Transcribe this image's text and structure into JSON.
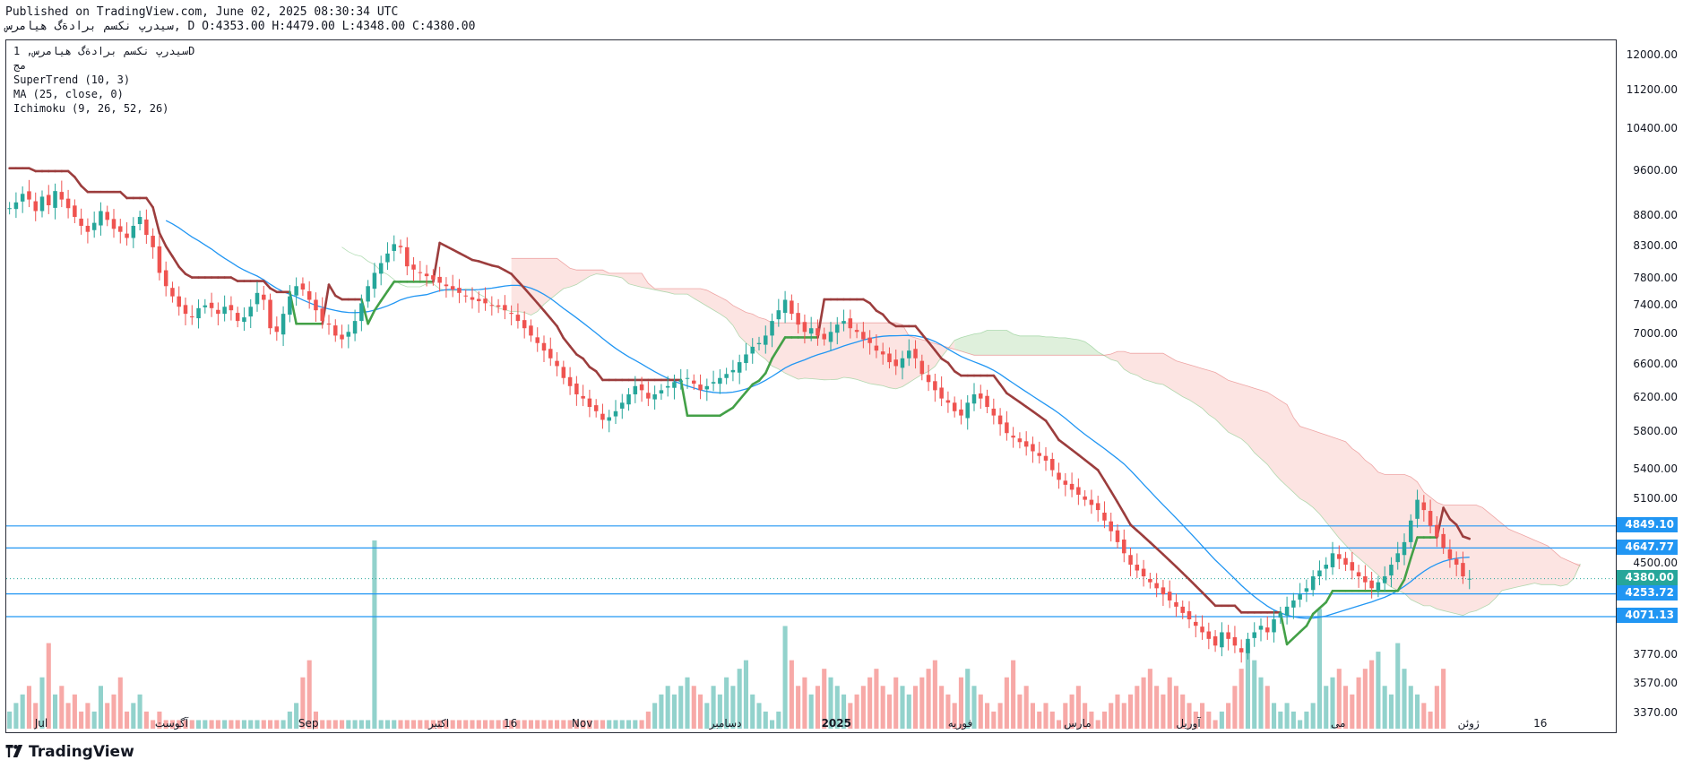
{
  "header": {
    "published": "Published on TradingView.com, June 02, 2025 08:30:34 UTC",
    "ohlc_line": "سیدرپ نکسم برادةگ هیامرس, D O:4353.00 H:4479.00 L:4348.00 C:4380.00"
  },
  "legend": {
    "symbol_line": "سیدرپ نکسم برادةگ هیامرس, 1D",
    "exchange": "مج",
    "supertrend": "SuperTrend (10, 3)",
    "ma": "MA (25, close, 0)",
    "ichimoku": "Ichimoku (9, 26, 52, 26)"
  },
  "footer": {
    "brand": "TradingView"
  },
  "colors": {
    "up": "#26a69a",
    "down": "#ef5350",
    "supertrend_up": "#43a047",
    "supertrend_down": "#9c3d3d",
    "ma": "#2196f3",
    "hline": "#2196f3",
    "cloud_bear": "#fce4e2",
    "cloud_bull": "#dff0dc"
  },
  "chart_data": {
    "type": "candlestick",
    "y_scale": "log",
    "ylim": [
      3280,
      12200
    ],
    "y_ticks": [
      {
        "v": 12000,
        "label": "12000.00"
      },
      {
        "v": 11200,
        "label": "11200.00"
      },
      {
        "v": 10400,
        "label": "10400.00"
      },
      {
        "v": 9600,
        "label": "9600.00"
      },
      {
        "v": 8800,
        "label": "8800.00"
      },
      {
        "v": 8300,
        "label": "8300.00"
      },
      {
        "v": 7800,
        "label": "7800.00"
      },
      {
        "v": 7400,
        "label": "7400.00"
      },
      {
        "v": 7000,
        "label": "7000.00"
      },
      {
        "v": 6600,
        "label": "6600.00"
      },
      {
        "v": 6200,
        "label": "6200.00"
      },
      {
        "v": 5800,
        "label": "5800.00"
      },
      {
        "v": 5400,
        "label": "5400.00"
      },
      {
        "v": 5100,
        "label": "5100.00"
      },
      {
        "v": 4500,
        "label": "4500.00"
      },
      {
        "v": 3770,
        "label": "3770.00"
      },
      {
        "v": 3570,
        "label": "3570.00"
      },
      {
        "v": 3370,
        "label": "3370.00"
      }
    ],
    "x_ticks": [
      {
        "bar": 5,
        "label": "Jul"
      },
      {
        "bar": 25,
        "label": "آگوست"
      },
      {
        "bar": 46,
        "label": "Sep"
      },
      {
        "bar": 66,
        "label": "اکتبر"
      },
      {
        "bar": 77,
        "label": "16"
      },
      {
        "bar": 88,
        "label": "Nov"
      },
      {
        "bar": 110,
        "label": "دسامبر"
      },
      {
        "bar": 127,
        "label": "2025"
      },
      {
        "bar": 146,
        "label": "فوریه"
      },
      {
        "bar": 164,
        "label": "مارس"
      },
      {
        "bar": 181,
        "label": "آوریل"
      },
      {
        "bar": 204,
        "label": "می"
      },
      {
        "bar": 224,
        "label": "ژوئن"
      },
      {
        "bar": 235,
        "label": "16"
      }
    ],
    "total_bars": 242,
    "close_series": [
      8950,
      9050,
      9200,
      9100,
      8900,
      9150,
      9000,
      9250,
      9100,
      8950,
      8800,
      8650,
      8550,
      8700,
      8900,
      8750,
      8600,
      8550,
      8450,
      8650,
      8800,
      8500,
      8300,
      7900,
      7700,
      7550,
      7400,
      7300,
      7250,
      7380,
      7420,
      7380,
      7300,
      7400,
      7350,
      7200,
      7250,
      7400,
      7600,
      7500,
      7100,
      7050,
      7300,
      7550,
      7700,
      7650,
      7500,
      7350,
      7200,
      7150,
      7000,
      6950,
      7050,
      7200,
      7450,
      7700,
      7900,
      8050,
      8200,
      8350,
      8300,
      8000,
      7950,
      7900,
      7850,
      7800,
      7750,
      7700,
      7650,
      7600,
      7550,
      7500,
      7480,
      7450,
      7420,
      7400,
      7350,
      7300,
      7200,
      7100,
      7000,
      6900,
      6800,
      6700,
      6600,
      6450,
      6350,
      6250,
      6200,
      6100,
      6050,
      5950,
      5980,
      6050,
      6150,
      6250,
      6350,
      6300,
      6200,
      6250,
      6300,
      6350,
      6400,
      6420,
      6450,
      6380,
      6300,
      6350,
      6400,
      6450,
      6500,
      6550,
      6650,
      6750,
      6850,
      6900,
      7000,
      7200,
      7350,
      7500,
      7300,
      7150,
      7050,
      7100,
      7000,
      6950,
      7050,
      7150,
      7200,
      7100,
      7050,
      6950,
      6900,
      6800,
      6750,
      6650,
      6600,
      6700,
      6800,
      6700,
      6500,
      6400,
      6300,
      6200,
      6150,
      6050,
      6000,
      6150,
      6250,
      6200,
      6100,
      6000,
      5900,
      5800,
      5750,
      5700,
      5650,
      5600,
      5550,
      5500,
      5400,
      5300,
      5250,
      5200,
      5150,
      5100,
      5050,
      5000,
      4900,
      4800,
      4700,
      4600,
      4500,
      4450,
      4400,
      4350,
      4300,
      4250,
      4200,
      4150,
      4100,
      4050,
      4000,
      3950,
      3900,
      3850,
      3950,
      3900,
      3850,
      3800,
      3900,
      3950,
      4000,
      3950,
      4050,
      4100,
      4150,
      4200,
      4250,
      4300,
      4400,
      4450,
      4500,
      4600,
      4550,
      4500,
      4450,
      4400,
      4350,
      4300,
      4350,
      4400,
      4500,
      4600,
      4700,
      4900,
      5100,
      5000,
      4850,
      4750,
      4650,
      4550,
      4500,
      4400,
      4380
    ],
    "volume_series": [
      2,
      3,
      4,
      5,
      3,
      6,
      10,
      4,
      5,
      3,
      4,
      2,
      3,
      2,
      5,
      3,
      4,
      6,
      2,
      3,
      4,
      2,
      1,
      2,
      1,
      1,
      1,
      1,
      1,
      1,
      1,
      1,
      1,
      1,
      1,
      1,
      1,
      1,
      1,
      1,
      1,
      1,
      1,
      2,
      3,
      6,
      8,
      2,
      1,
      1,
      1,
      1,
      1,
      1,
      1,
      1,
      22,
      1,
      1,
      1,
      1,
      1,
      1,
      1,
      1,
      1,
      1,
      1,
      1,
      1,
      1,
      1,
      1,
      1,
      1,
      1,
      1,
      1,
      1,
      1,
      1,
      1,
      1,
      1,
      1,
      1,
      1,
      1,
      1,
      1,
      1,
      1,
      1,
      1,
      1,
      1,
      1,
      1,
      2,
      3,
      4,
      5,
      4,
      5,
      6,
      5,
      4,
      3,
      5,
      4,
      6,
      5,
      7,
      8,
      4,
      3,
      2,
      1,
      2,
      12,
      8,
      5,
      6,
      4,
      5,
      7,
      6,
      5,
      4,
      3,
      4,
      5,
      6,
      7,
      5,
      4,
      6,
      5,
      4,
      5,
      6,
      7,
      8,
      5,
      4,
      3,
      6,
      7,
      5,
      4,
      3,
      2,
      3,
      6,
      8,
      4,
      5,
      3,
      2,
      3,
      2,
      1,
      3,
      4,
      5,
      3,
      2,
      1,
      2,
      3,
      4,
      3,
      4,
      5,
      6,
      7,
      5,
      4,
      6,
      5,
      4,
      3,
      2,
      3,
      2,
      1,
      2,
      3,
      5,
      7,
      10,
      8,
      6,
      5,
      3,
      2,
      3,
      2,
      1,
      2,
      3,
      14,
      5,
      6,
      7,
      5,
      4,
      6,
      7,
      8,
      9,
      5,
      4,
      10,
      7,
      5,
      4,
      3,
      2,
      5,
      7
    ]
  },
  "price_lines": [
    {
      "value": 4849.1,
      "label": "4849.10",
      "kind": "hline"
    },
    {
      "value": 4647.77,
      "label": "4647.77",
      "kind": "hline"
    },
    {
      "value": 4380.0,
      "label": "4380.00",
      "kind": "last"
    },
    {
      "value": 4253.72,
      "label": "4253.72",
      "kind": "hline"
    },
    {
      "value": 4071.13,
      "label": "4071.13",
      "kind": "hline"
    }
  ]
}
